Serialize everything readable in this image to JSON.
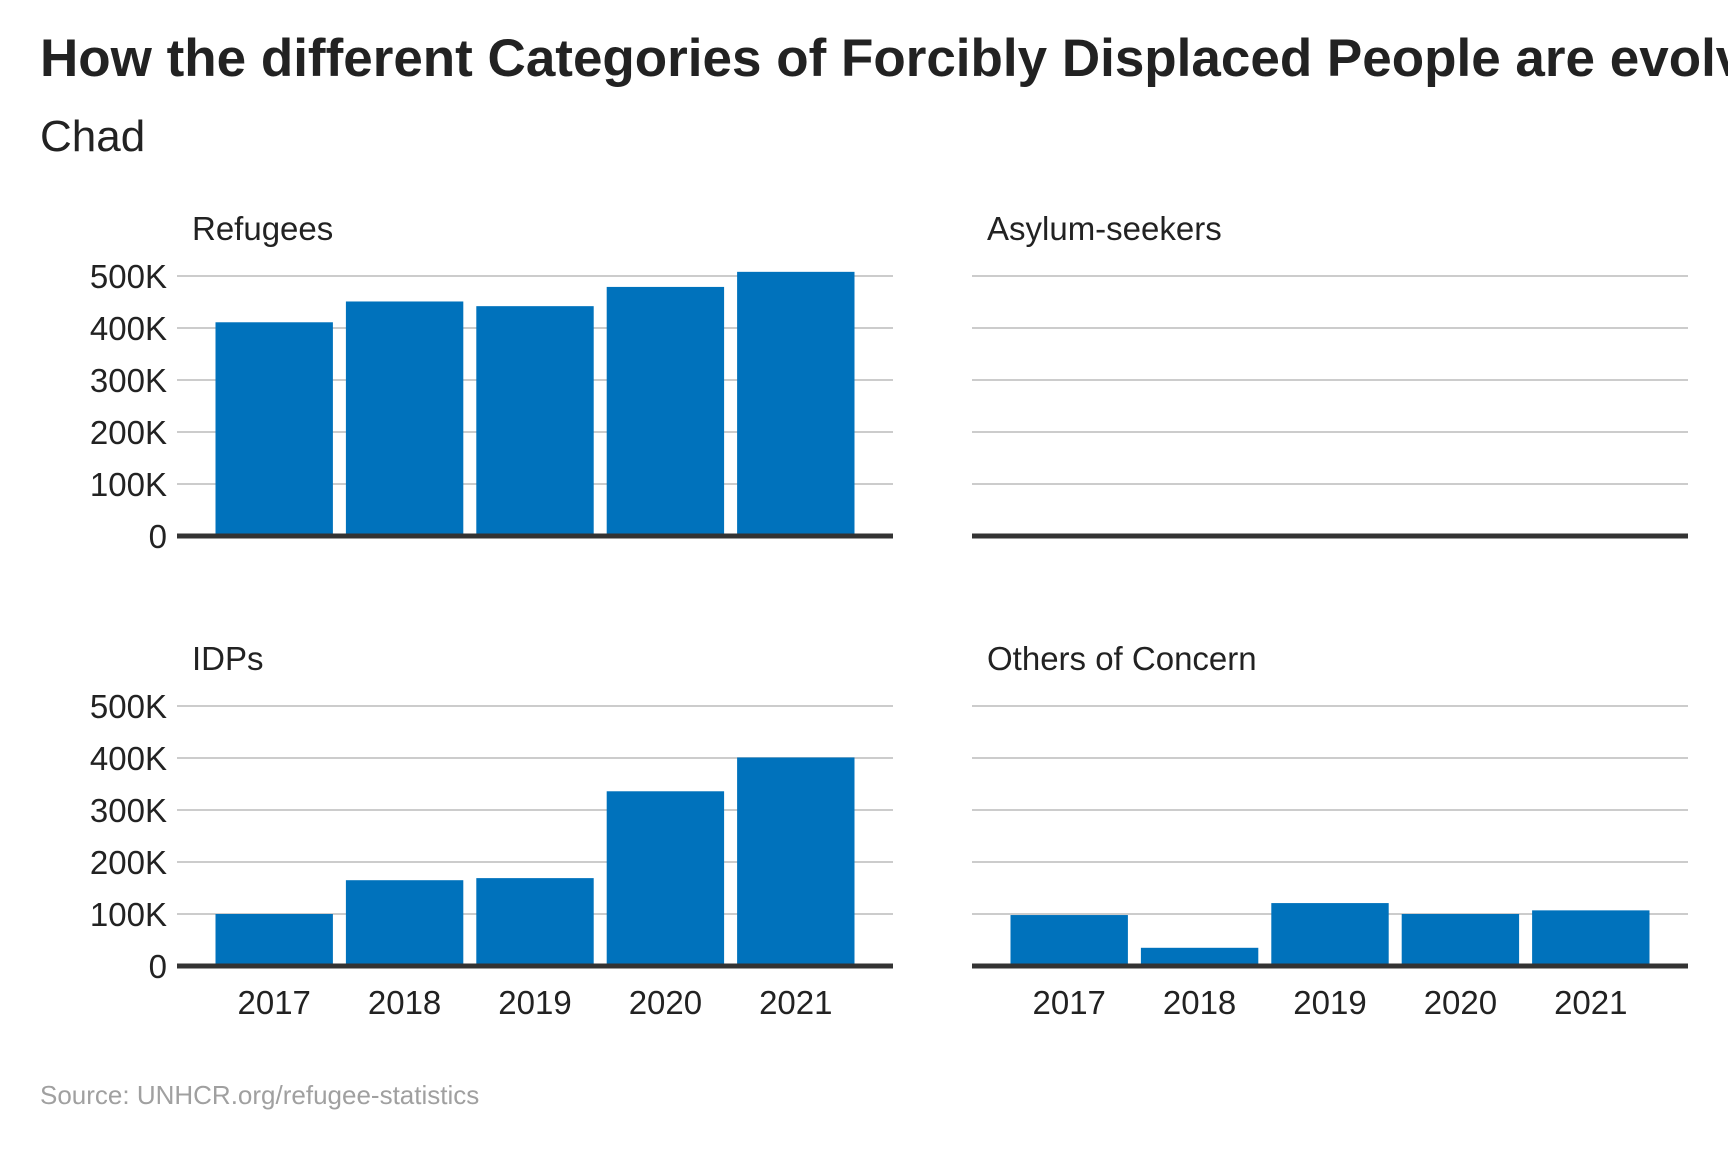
{
  "title": "How the different Categories of Forcibly Displaced People are evolving",
  "subtitle": "Chad",
  "source": "Source: UNHCR.org/refugee-statistics",
  "colors": {
    "bar": "#0072bc",
    "grid": "#cccccc",
    "axis": "#333333",
    "text": "#222222",
    "source": "#a0a0a0"
  },
  "chart_data": [
    {
      "type": "bar",
      "title": "Refugees",
      "categories": [
        "2017",
        "2018",
        "2019",
        "2020",
        "2021"
      ],
      "values": [
        411000,
        451000,
        442000,
        479000,
        508000
      ],
      "ylim": [
        0,
        500000
      ],
      "yticks": [
        0,
        100000,
        200000,
        300000,
        400000,
        500000
      ],
      "ytick_labels": [
        "0",
        "100K",
        "200K",
        "300K",
        "400K",
        "500K"
      ],
      "show_y_labels": true,
      "show_x_labels": false,
      "grid": true
    },
    {
      "type": "bar",
      "title": "Asylum-seekers",
      "categories": [
        "2017",
        "2018",
        "2019",
        "2020",
        "2021"
      ],
      "values": [
        0,
        0,
        0,
        0,
        0
      ],
      "ylim": [
        0,
        500000
      ],
      "yticks": [
        0,
        100000,
        200000,
        300000,
        400000,
        500000
      ],
      "ytick_labels": [
        "0",
        "100K",
        "200K",
        "300K",
        "400K",
        "500K"
      ],
      "show_y_labels": false,
      "show_x_labels": false,
      "grid": true
    },
    {
      "type": "bar",
      "title": "IDPs",
      "categories": [
        "2017",
        "2018",
        "2019",
        "2020",
        "2021"
      ],
      "values": [
        100000,
        165000,
        169000,
        336000,
        401000
      ],
      "ylim": [
        0,
        500000
      ],
      "yticks": [
        0,
        100000,
        200000,
        300000,
        400000,
        500000
      ],
      "ytick_labels": [
        "0",
        "100K",
        "200K",
        "300K",
        "400K",
        "500K"
      ],
      "show_y_labels": true,
      "show_x_labels": true,
      "grid": true
    },
    {
      "type": "bar",
      "title": "Others of Concern",
      "categories": [
        "2017",
        "2018",
        "2019",
        "2020",
        "2021"
      ],
      "values": [
        98000,
        35000,
        121000,
        100000,
        107000
      ],
      "ylim": [
        0,
        500000
      ],
      "yticks": [
        0,
        100000,
        200000,
        300000,
        400000,
        500000
      ],
      "ytick_labels": [
        "0",
        "100K",
        "200K",
        "300K",
        "400K",
        "500K"
      ],
      "show_y_labels": false,
      "show_x_labels": true,
      "grid": true
    }
  ]
}
